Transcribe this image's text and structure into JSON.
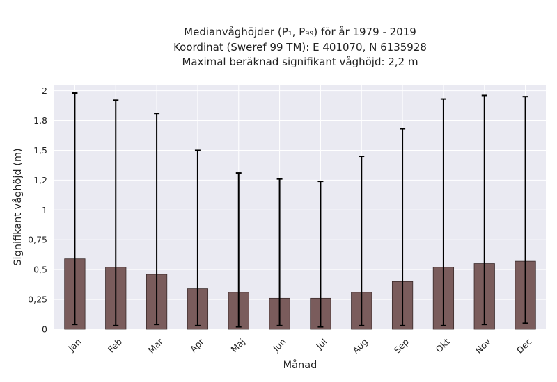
{
  "chart_data": {
    "type": "bar",
    "title_lines": [
      "Medianvåghöjder (P₁, P₉₉) för år 1979 - 2019",
      "Koordinat (Sweref 99 TM): E 401070, N 6135928",
      "Maximal beräknad signifikant våghöjd: 2,2 m"
    ],
    "xlabel": "Månad",
    "ylabel": "Signifikant våghöjd (m)",
    "categories": [
      "Jan",
      "Feb",
      "Mar",
      "Apr",
      "Maj",
      "Jun",
      "Jul",
      "Aug",
      "Sep",
      "Okt",
      "Nov",
      "Dec"
    ],
    "series": [
      {
        "values": [
          0.59,
          0.52,
          0.46,
          0.34,
          0.31,
          0.26,
          0.26,
          0.31,
          0.4,
          0.52,
          0.55,
          0.57
        ],
        "error_low": [
          0.04,
          0.03,
          0.04,
          0.03,
          0.02,
          0.03,
          0.02,
          0.03,
          0.03,
          0.03,
          0.04,
          0.05
        ],
        "error_high": [
          1.98,
          1.92,
          1.81,
          1.5,
          1.31,
          1.26,
          1.24,
          1.45,
          1.68,
          1.93,
          1.96,
          1.95
        ],
        "color": "#7a5c5c"
      }
    ],
    "ylim": [
      0,
      2.05
    ],
    "yticks": [
      0,
      0.25,
      0.5,
      0.75,
      1.0,
      1.25,
      1.5,
      1.75,
      2.0
    ],
    "ytick_labels": [
      "0",
      "0,25",
      "0,5",
      "0,75",
      "1",
      "1,2",
      "1,5",
      "1,8",
      "2"
    ],
    "grid": true,
    "style": {
      "background": "#eaeaf2",
      "grid_color": "#ffffff",
      "bar_edge": "#3a2a2a",
      "error_color": "#000000"
    }
  }
}
